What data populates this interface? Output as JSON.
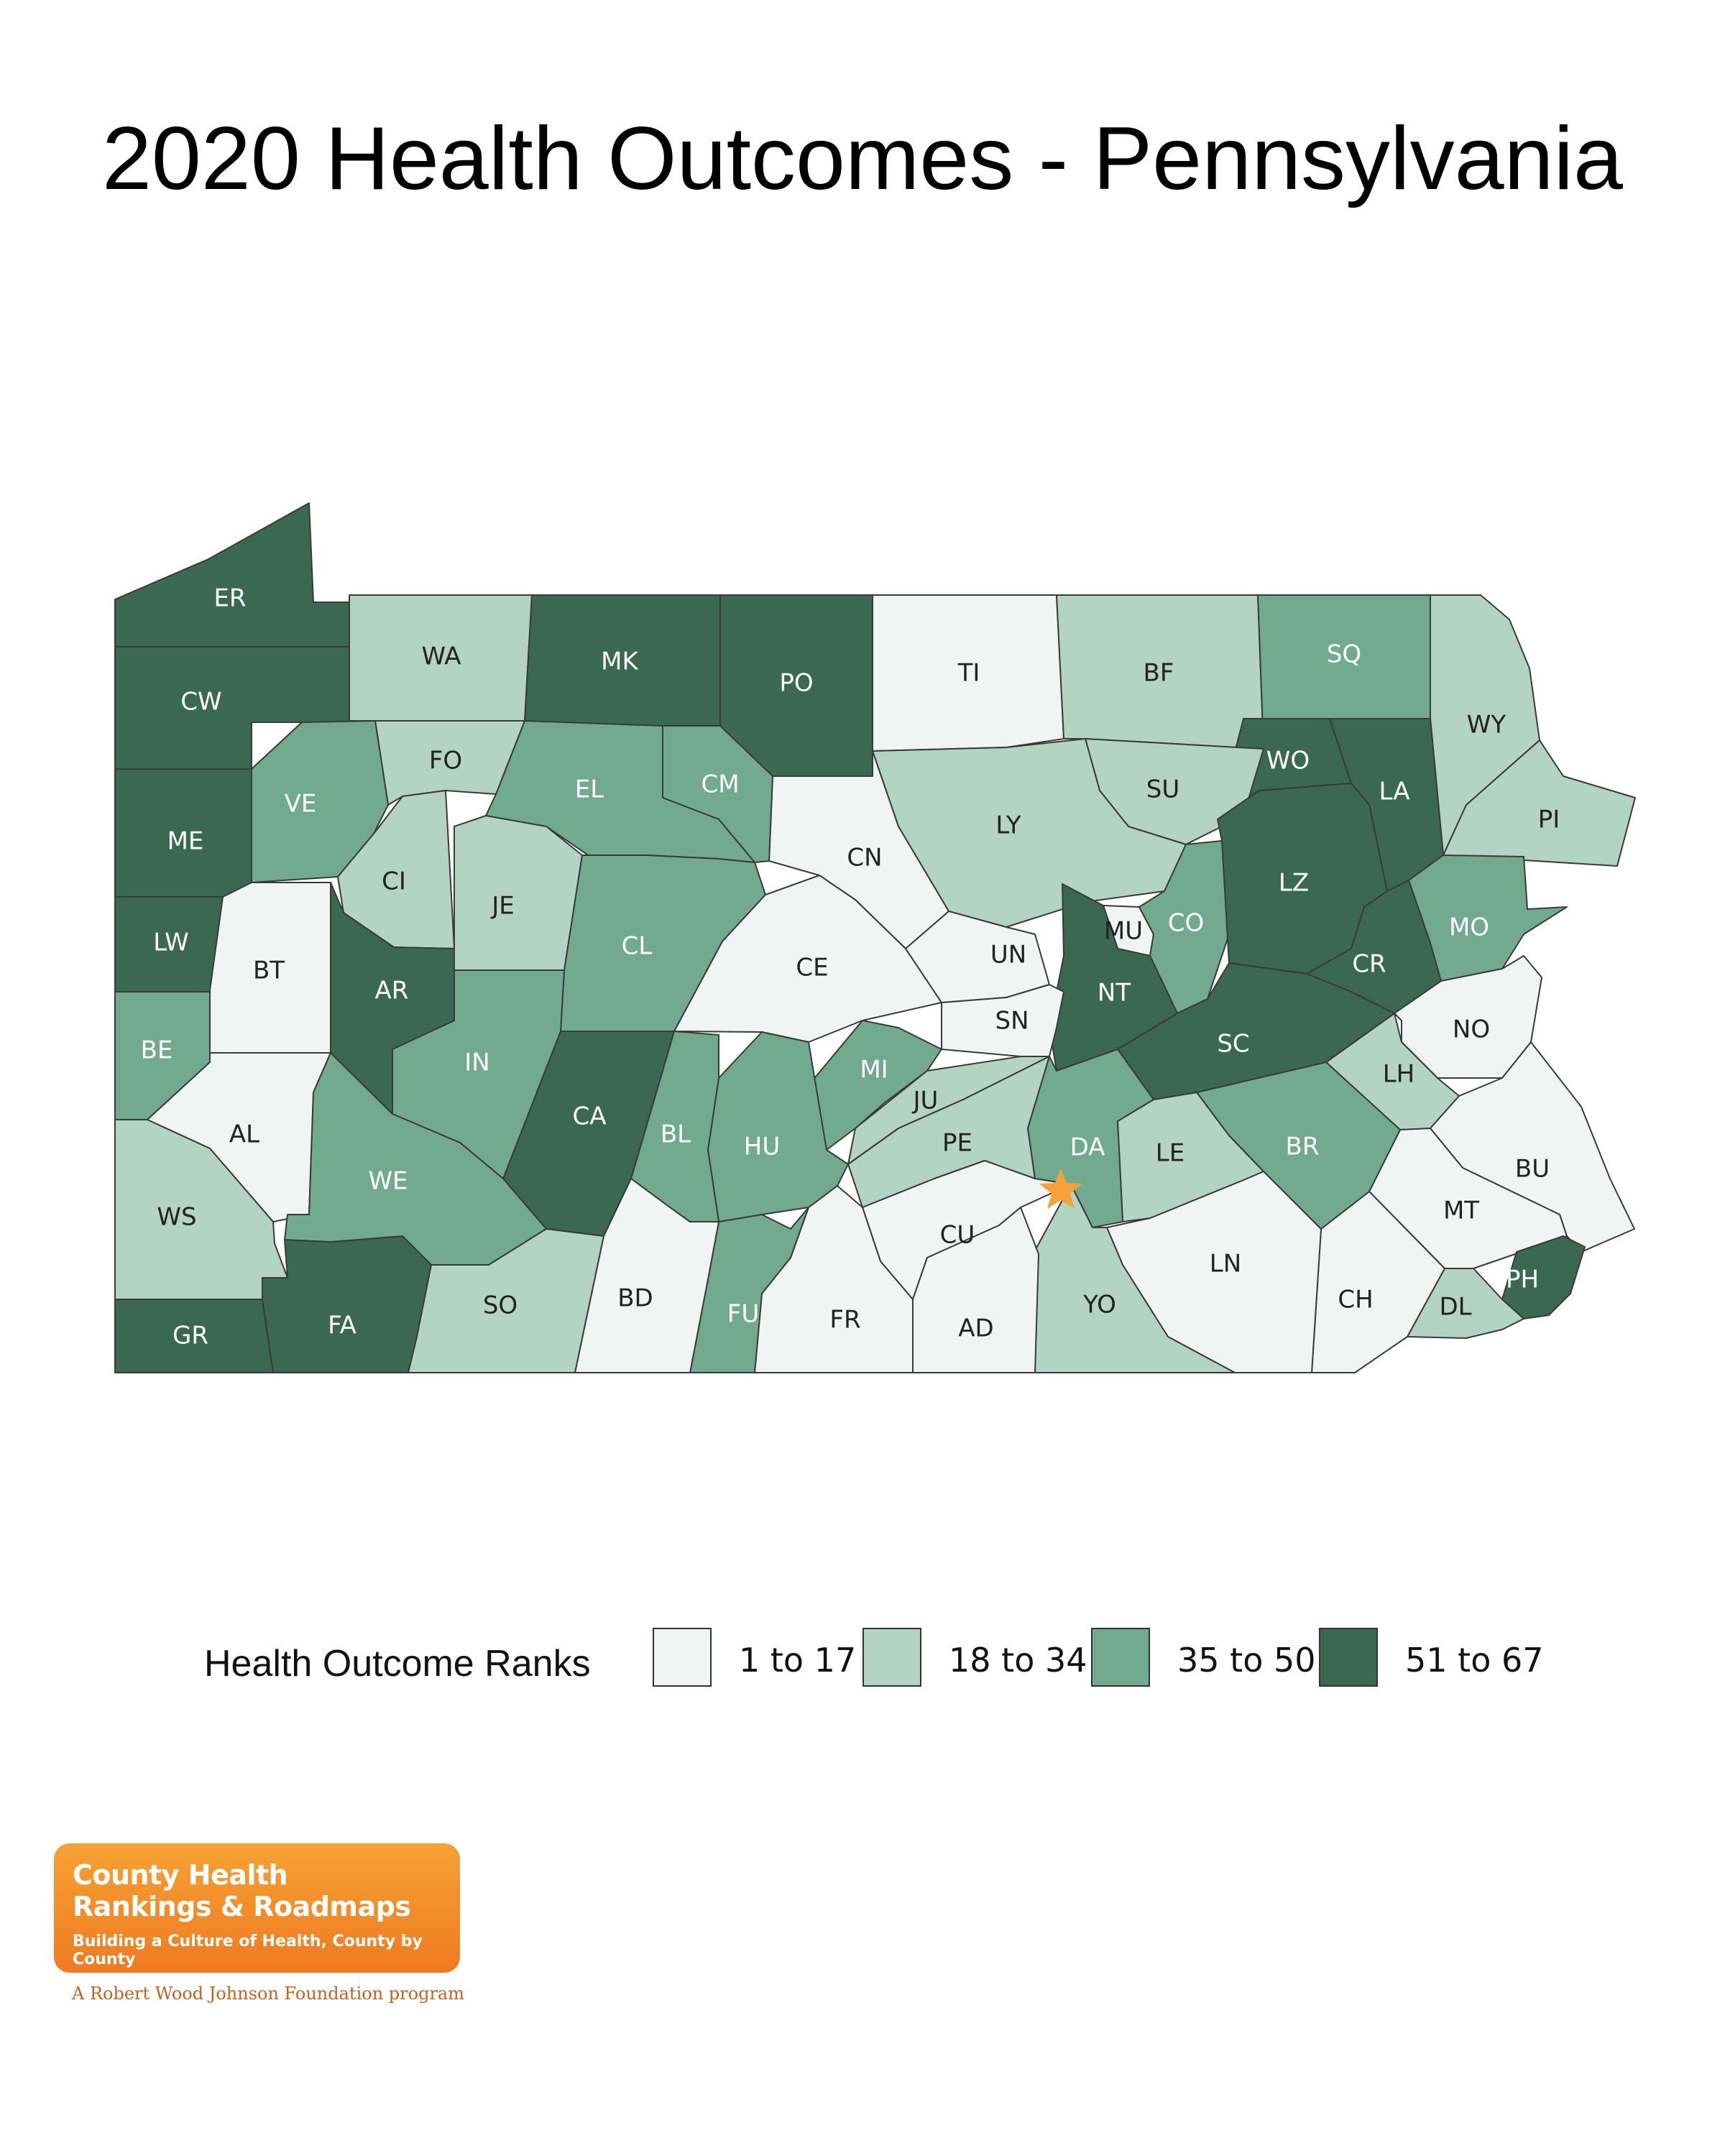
{
  "title": "2020 Health Outcomes - Pennsylvania",
  "legend": {
    "title": "Health Outcome Ranks",
    "bins": [
      {
        "label": "1 to 17",
        "color": "#f0f4f2"
      },
      {
        "label": "18 to 34",
        "color": "#b3d3c5"
      },
      {
        "label": "35 to 50",
        "color": "#72aa8f"
      },
      {
        "label": "51 to 67",
        "color": "#3b6852"
      }
    ]
  },
  "counties": {
    "ER": 3,
    "CW": 3,
    "ME": 3,
    "LW": 3,
    "BE": 2,
    "BT": 0,
    "AL": 0,
    "WS": 1,
    "GR": 3,
    "FA": 3,
    "WA": 1,
    "MK": 3,
    "PO": 3,
    "TI": 0,
    "BF": 1,
    "SQ": 2,
    "WY": 1,
    "PI": 1,
    "WO": 3,
    "LA": 3,
    "SU": 1,
    "LY": 1,
    "CN": 0,
    "CM": 2,
    "EL": 2,
    "FO": 1,
    "VE": 2,
    "CI": 1,
    "JE": 1,
    "CL": 2,
    "CE": 0,
    "UN": 0,
    "MU": 0,
    "CO": 2,
    "LZ": 3,
    "CR": 3,
    "MO": 2,
    "NO": 0,
    "LH": 1,
    "BU": 0,
    "MT": 0,
    "PH": 3,
    "DL": 1,
    "CH": 0,
    "LN": 0,
    "LE": 1,
    "BR": 2,
    "SC": 3,
    "NT": 3,
    "SN": 0,
    "MI": 2,
    "JU": 1,
    "PE": 1,
    "DA": 2,
    "CU": 0,
    "YO": 1,
    "AD": 0,
    "FR": 0,
    "FU": 2,
    "HU": 2,
    "BL": 2,
    "CA": 3,
    "IN": 2,
    "AR": 3,
    "WE": 2,
    "SO": 1,
    "BD": 0
  },
  "capital_marker": "star-icon",
  "logo": {
    "line1": "County Health",
    "line2": "Rankings & Roadmaps",
    "line3": "Building a Culture of Health, County by County",
    "sub": "A Robert Wood Johnson Foundation program"
  }
}
